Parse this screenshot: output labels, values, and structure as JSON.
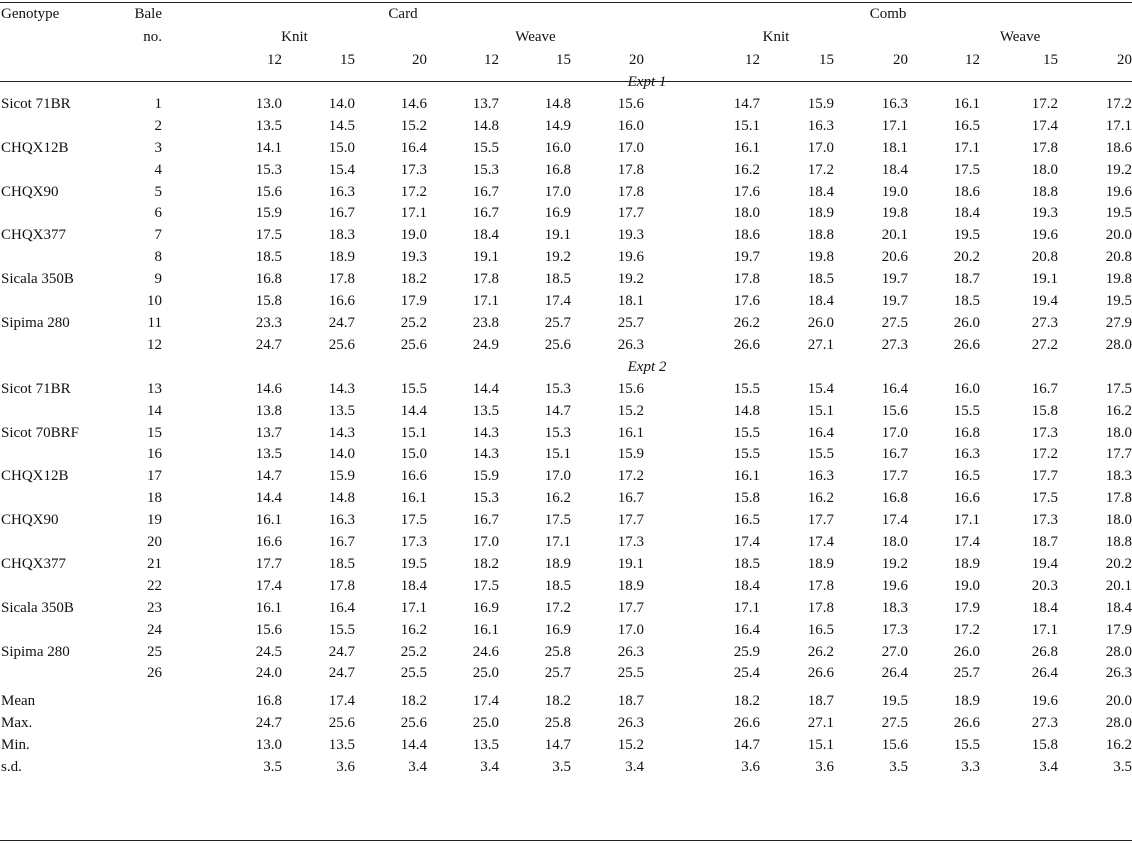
{
  "header": {
    "genotype": "Genotype",
    "bale_line1": "Bale",
    "bale_line2": "no.",
    "card": "Card",
    "comb": "Comb",
    "knit": "Knit",
    "weave": "Weave",
    "counts": [
      "12",
      "15",
      "20",
      "12",
      "15",
      "20",
      "12",
      "15",
      "20",
      "12",
      "15",
      "20"
    ]
  },
  "sections": [
    {
      "title": "Expt 1",
      "rows": [
        {
          "genotype": "Sicot 71BR",
          "bale": "1",
          "values": [
            "13.0",
            "14.0",
            "14.6",
            "13.7",
            "14.8",
            "15.6",
            "14.7",
            "15.9",
            "16.3",
            "16.1",
            "17.2",
            "17.2"
          ]
        },
        {
          "genotype": "",
          "bale": "2",
          "values": [
            "13.5",
            "14.5",
            "15.2",
            "14.8",
            "14.9",
            "16.0",
            "15.1",
            "16.3",
            "17.1",
            "16.5",
            "17.4",
            "17.1"
          ]
        },
        {
          "genotype": "CHQX12B",
          "bale": "3",
          "values": [
            "14.1",
            "15.0",
            "16.4",
            "15.5",
            "16.0",
            "17.0",
            "16.1",
            "17.0",
            "18.1",
            "17.1",
            "17.8",
            "18.6"
          ]
        },
        {
          "genotype": "",
          "bale": "4",
          "values": [
            "15.3",
            "15.4",
            "17.3",
            "15.3",
            "16.8",
            "17.8",
            "16.2",
            "17.2",
            "18.4",
            "17.5",
            "18.0",
            "19.2"
          ]
        },
        {
          "genotype": "CHQX90",
          "bale": "5",
          "values": [
            "15.6",
            "16.3",
            "17.2",
            "16.7",
            "17.0",
            "17.8",
            "17.6",
            "18.4",
            "19.0",
            "18.6",
            "18.8",
            "19.6"
          ]
        },
        {
          "genotype": "",
          "bale": "6",
          "values": [
            "15.9",
            "16.7",
            "17.1",
            "16.7",
            "16.9",
            "17.7",
            "18.0",
            "18.9",
            "19.8",
            "18.4",
            "19.3",
            "19.5"
          ]
        },
        {
          "genotype": "CHQX377",
          "bale": "7",
          "values": [
            "17.5",
            "18.3",
            "19.0",
            "18.4",
            "19.1",
            "19.3",
            "18.6",
            "18.8",
            "20.1",
            "19.5",
            "19.6",
            "20.0"
          ]
        },
        {
          "genotype": "",
          "bale": "8",
          "values": [
            "18.5",
            "18.9",
            "19.3",
            "19.1",
            "19.2",
            "19.6",
            "19.7",
            "19.8",
            "20.6",
            "20.2",
            "20.8",
            "20.8"
          ]
        },
        {
          "genotype": "Sicala 350B",
          "bale": "9",
          "values": [
            "16.8",
            "17.8",
            "18.2",
            "17.8",
            "18.5",
            "19.2",
            "17.8",
            "18.5",
            "19.7",
            "18.7",
            "19.1",
            "19.8"
          ]
        },
        {
          "genotype": "",
          "bale": "10",
          "values": [
            "15.8",
            "16.6",
            "17.9",
            "17.1",
            "17.4",
            "18.1",
            "17.6",
            "18.4",
            "19.7",
            "18.5",
            "19.4",
            "19.5"
          ]
        },
        {
          "genotype": "Sipima 280",
          "bale": "11",
          "values": [
            "23.3",
            "24.7",
            "25.2",
            "23.8",
            "25.7",
            "25.7",
            "26.2",
            "26.0",
            "27.5",
            "26.0",
            "27.3",
            "27.9"
          ]
        },
        {
          "genotype": "",
          "bale": "12",
          "values": [
            "24.7",
            "25.6",
            "25.6",
            "24.9",
            "25.6",
            "26.3",
            "26.6",
            "27.1",
            "27.3",
            "26.6",
            "27.2",
            "28.0"
          ]
        }
      ]
    },
    {
      "title": "Expt 2",
      "rows": [
        {
          "genotype": "Sicot 71BR",
          "bale": "13",
          "values": [
            "14.6",
            "14.3",
            "15.5",
            "14.4",
            "15.3",
            "15.6",
            "15.5",
            "15.4",
            "16.4",
            "16.0",
            "16.7",
            "17.5"
          ]
        },
        {
          "genotype": "",
          "bale": "14",
          "values": [
            "13.8",
            "13.5",
            "14.4",
            "13.5",
            "14.7",
            "15.2",
            "14.8",
            "15.1",
            "15.6",
            "15.5",
            "15.8",
            "16.2"
          ]
        },
        {
          "genotype": "Sicot 70BRF",
          "bale": "15",
          "values": [
            "13.7",
            "14.3",
            "15.1",
            "14.3",
            "15.3",
            "16.1",
            "15.5",
            "16.4",
            "17.0",
            "16.8",
            "17.3",
            "18.0"
          ]
        },
        {
          "genotype": "",
          "bale": "16",
          "values": [
            "13.5",
            "14.0",
            "15.0",
            "14.3",
            "15.1",
            "15.9",
            "15.5",
            "15.5",
            "16.7",
            "16.3",
            "17.2",
            "17.7"
          ]
        },
        {
          "genotype": "CHQX12B",
          "bale": "17",
          "values": [
            "14.7",
            "15.9",
            "16.6",
            "15.9",
            "17.0",
            "17.2",
            "16.1",
            "16.3",
            "17.7",
            "16.5",
            "17.7",
            "18.3"
          ]
        },
        {
          "genotype": "",
          "bale": "18",
          "values": [
            "14.4",
            "14.8",
            "16.1",
            "15.3",
            "16.2",
            "16.7",
            "15.8",
            "16.2",
            "16.8",
            "16.6",
            "17.5",
            "17.8"
          ]
        },
        {
          "genotype": "CHQX90",
          "bale": "19",
          "values": [
            "16.1",
            "16.3",
            "17.5",
            "16.7",
            "17.5",
            "17.7",
            "16.5",
            "17.7",
            "17.4",
            "17.1",
            "17.3",
            "18.0"
          ]
        },
        {
          "genotype": "",
          "bale": "20",
          "values": [
            "16.6",
            "16.7",
            "17.3",
            "17.0",
            "17.1",
            "17.3",
            "17.4",
            "17.4",
            "18.0",
            "17.4",
            "18.7",
            "18.8"
          ]
        },
        {
          "genotype": "CHQX377",
          "bale": "21",
          "values": [
            "17.7",
            "18.5",
            "19.5",
            "18.2",
            "18.9",
            "19.1",
            "18.5",
            "18.9",
            "19.2",
            "18.9",
            "19.4",
            "20.2"
          ]
        },
        {
          "genotype": "",
          "bale": "22",
          "values": [
            "17.4",
            "17.8",
            "18.4",
            "17.5",
            "18.5",
            "18.9",
            "18.4",
            "17.8",
            "19.6",
            "19.0",
            "20.3",
            "20.1"
          ]
        },
        {
          "genotype": "Sicala 350B",
          "bale": "23",
          "values": [
            "16.1",
            "16.4",
            "17.1",
            "16.9",
            "17.2",
            "17.7",
            "17.1",
            "17.8",
            "18.3",
            "17.9",
            "18.4",
            "18.4"
          ]
        },
        {
          "genotype": "",
          "bale": "24",
          "values": [
            "15.6",
            "15.5",
            "16.2",
            "16.1",
            "16.9",
            "17.0",
            "16.4",
            "16.5",
            "17.3",
            "17.2",
            "17.1",
            "17.9"
          ]
        },
        {
          "genotype": "Sipima 280",
          "bale": "25",
          "values": [
            "24.5",
            "24.7",
            "25.2",
            "24.6",
            "25.8",
            "26.3",
            "25.9",
            "26.2",
            "27.0",
            "26.0",
            "26.8",
            "28.0"
          ]
        },
        {
          "genotype": "",
          "bale": "26",
          "values": [
            "24.0",
            "24.7",
            "25.5",
            "25.0",
            "25.7",
            "25.5",
            "25.4",
            "26.6",
            "26.4",
            "25.7",
            "26.4",
            "26.3"
          ]
        }
      ]
    }
  ],
  "summary": [
    {
      "label": "Mean",
      "values": [
        "16.8",
        "17.4",
        "18.2",
        "17.4",
        "18.2",
        "18.7",
        "18.2",
        "18.7",
        "19.5",
        "18.9",
        "19.6",
        "20.0"
      ]
    },
    {
      "label": "Max.",
      "values": [
        "24.7",
        "25.6",
        "25.6",
        "25.0",
        "25.8",
        "26.3",
        "26.6",
        "27.1",
        "27.5",
        "26.6",
        "27.3",
        "28.0"
      ]
    },
    {
      "label": "Min.",
      "values": [
        "13.0",
        "13.5",
        "14.4",
        "13.5",
        "14.7",
        "15.2",
        "14.7",
        "15.1",
        "15.6",
        "15.5",
        "15.8",
        "16.2"
      ]
    },
    {
      "label": "s.d.",
      "values": [
        "3.5",
        "3.6",
        "3.4",
        "3.4",
        "3.5",
        "3.4",
        "3.6",
        "3.6",
        "3.5",
        "3.3",
        "3.4",
        "3.5"
      ]
    }
  ]
}
